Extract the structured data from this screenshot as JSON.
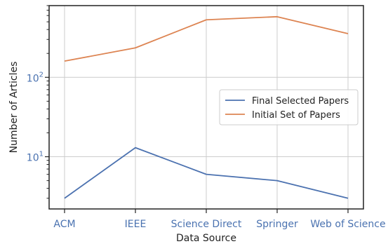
{
  "chart_data": {
    "type": "line",
    "categories": [
      "ACM",
      "IEEE",
      "Science Direct",
      "Springer",
      "Web of Science"
    ],
    "series": [
      {
        "name": "Final Selected Papers",
        "values": [
          3,
          13,
          6,
          5,
          3
        ],
        "color": "#4c72b0"
      },
      {
        "name": "Initial Set of Papers",
        "values": [
          160,
          235,
          530,
          580,
          355
        ],
        "color": "#dd8452"
      }
    ],
    "xlabel": "Data Source",
    "ylabel": "Number of Articles",
    "yscale": "log",
    "ylim": [
      2.2,
      800
    ],
    "y_ticks": [
      {
        "value": 10,
        "base": "10",
        "exp": "1"
      },
      {
        "value": 100,
        "base": "10",
        "exp": "2"
      }
    ],
    "grid": true,
    "legend_position": "center-right"
  }
}
